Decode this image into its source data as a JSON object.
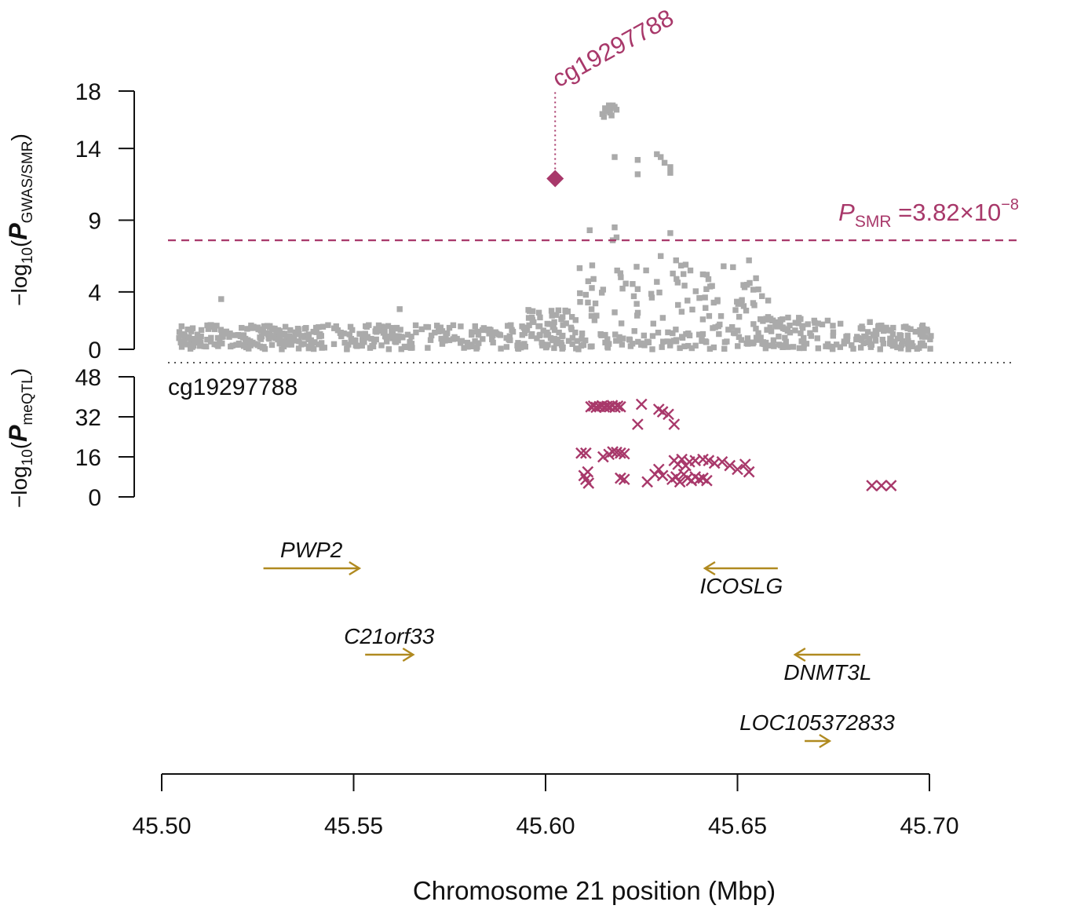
{
  "chart_data": {
    "type": "scatter",
    "xlabel": "Chromosome 21 position (Mbp)",
    "xlim": [
      45.5,
      45.7
    ],
    "xticks": [
      "45.50",
      "45.55",
      "45.60",
      "45.65",
      "45.70"
    ],
    "colors": {
      "gwas": "#aaaaaa",
      "accent": "#a8386a",
      "gene": "#b08a20",
      "text": "#111111"
    },
    "top_panel": {
      "ylabel_prefix": "−log",
      "ylabel_sub": "10",
      "ylabel_p": "P",
      "ylabel_psub": "GWAS/SMR",
      "ylim": [
        0,
        18
      ],
      "yticks": [
        "0",
        "4",
        "9",
        "14",
        "18"
      ],
      "threshold": {
        "label_p": "P",
        "label_sub": "SMR",
        "label_value": "=3.82×10",
        "label_exp": "−8",
        "value": 7.6
      },
      "probe": {
        "name": "cg19297788",
        "x": 45.6025,
        "y": 11.9
      },
      "gwas_seed": 7
    },
    "bottom_panel": {
      "ylabel_prefix": "−log",
      "ylabel_sub": "10",
      "ylabel_p": "P",
      "ylabel_psub": "meQTL",
      "ylim": [
        0,
        48
      ],
      "yticks": [
        "0",
        "16",
        "32",
        "48"
      ],
      "probe_label": "cg19297788",
      "points": [
        [
          45.6118,
          36
        ],
        [
          45.6125,
          36.3
        ],
        [
          45.6132,
          35.8
        ],
        [
          45.614,
          36.1
        ],
        [
          45.6147,
          36.4
        ],
        [
          45.6153,
          35.9
        ],
        [
          45.616,
          36.2
        ],
        [
          45.6167,
          36
        ],
        [
          45.6174,
          36.5
        ],
        [
          45.6181,
          35.8
        ],
        [
          45.6188,
          36.3
        ],
        [
          45.6195,
          36
        ],
        [
          45.625,
          37
        ],
        [
          45.624,
          29
        ],
        [
          45.6295,
          35
        ],
        [
          45.6305,
          34
        ],
        [
          45.632,
          33
        ],
        [
          45.6335,
          29
        ],
        [
          45.6093,
          17.5
        ],
        [
          45.6105,
          17.5
        ],
        [
          45.615,
          16
        ],
        [
          45.6165,
          17
        ],
        [
          45.6175,
          18
        ],
        [
          45.6185,
          17.8
        ],
        [
          45.6195,
          17.5
        ],
        [
          45.6205,
          17.2
        ],
        [
          45.611,
          10
        ],
        [
          45.6105,
          7
        ],
        [
          45.6112,
          5.5
        ],
        [
          45.61,
          8.5
        ],
        [
          45.6195,
          7.5
        ],
        [
          45.6205,
          7
        ],
        [
          45.6265,
          6
        ],
        [
          45.6285,
          9
        ],
        [
          45.6295,
          11
        ],
        [
          45.6305,
          8.5
        ],
        [
          45.633,
          7
        ],
        [
          45.634,
          8
        ],
        [
          45.635,
          6
        ],
        [
          45.636,
          9
        ],
        [
          45.637,
          7.5
        ],
        [
          45.638,
          6.5
        ],
        [
          45.639,
          8
        ],
        [
          45.64,
          7
        ],
        [
          45.641,
          7.5
        ],
        [
          45.642,
          6.5
        ],
        [
          45.6335,
          14.5
        ],
        [
          45.6345,
          13
        ],
        [
          45.6355,
          15
        ],
        [
          45.6365,
          12.5
        ],
        [
          45.6375,
          14
        ],
        [
          45.639,
          14.5
        ],
        [
          45.641,
          15
        ],
        [
          45.6425,
          14.5
        ],
        [
          45.644,
          13.5
        ],
        [
          45.646,
          14
        ],
        [
          45.648,
          12.5
        ],
        [
          45.65,
          11
        ],
        [
          45.652,
          13
        ],
        [
          45.653,
          10
        ],
        [
          45.685,
          4.5
        ],
        [
          45.6875,
          4.5
        ],
        [
          45.69,
          4.5
        ]
      ]
    },
    "genes": [
      {
        "name": "PWP2",
        "start": 45.5265,
        "end": 45.5515,
        "dir": "right",
        "row": 0,
        "label_pos": "above"
      },
      {
        "name": "ICOSLG",
        "start": 45.6415,
        "end": 45.6605,
        "dir": "left",
        "row": 0,
        "label_pos": "below"
      },
      {
        "name": "C21orf33",
        "start": 45.553,
        "end": 45.5655,
        "dir": "right",
        "row": 1,
        "label_pos": "above"
      },
      {
        "name": "DNMT3L",
        "start": 45.665,
        "end": 45.682,
        "dir": "left",
        "row": 1,
        "label_pos": "below"
      },
      {
        "name": "LOC105372833",
        "start": 45.6675,
        "end": 45.674,
        "dir": "right",
        "row": 2,
        "label_pos": "above"
      }
    ]
  }
}
